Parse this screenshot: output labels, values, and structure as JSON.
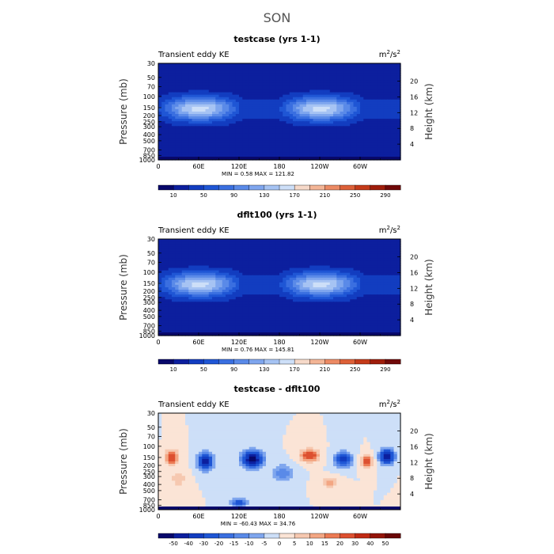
{
  "page_title": "SON",
  "colors": {
    "background": "#ffffff",
    "contour_field_base": "#1a3fb8",
    "map_frame": "#000000"
  },
  "chart_data": [
    {
      "type": "heatmap",
      "id": "panel-1",
      "title": "testcase (yrs 1-1)",
      "left_label": "Transient eddy KE",
      "units": "m2/s2",
      "units_base": "m",
      "units_exp1": "2",
      "units_mid": "/s",
      "units_exp2": "2",
      "ylabel": "Pressure (mb)",
      "y2label": "Height (km)",
      "y_ticks": [
        "30",
        "50",
        "70",
        "100",
        "150",
        "200",
        "250",
        "300",
        "400",
        "500",
        "700",
        "850",
        "1000"
      ],
      "y_tick_values": [
        30,
        50,
        70,
        100,
        150,
        200,
        250,
        300,
        400,
        500,
        700,
        850,
        1000
      ],
      "y2_ticks": [
        "20",
        "16",
        "12",
        "8",
        "4"
      ],
      "y2_tick_values": [
        20,
        16,
        12,
        8,
        4
      ],
      "ylim": [
        1000,
        30
      ],
      "x_ticks": [
        "0",
        "60E",
        "120E",
        "180",
        "120W",
        "60W"
      ],
      "x_tick_values": [
        0,
        60,
        120,
        180,
        240,
        300
      ],
      "xlim": [
        0,
        360
      ],
      "minmax_text": "MIN =     0.58   MAX = 121.82",
      "min": 0.58,
      "max": 121.82,
      "colorbar": {
        "levels": [
          10,
          30,
          50,
          70,
          90,
          110,
          130,
          150,
          170,
          190,
          210,
          230,
          250,
          270,
          290
        ],
        "labels": [
          "10",
          "50",
          "90",
          "130",
          "170",
          "210",
          "250",
          "290"
        ],
        "colors": [
          "#08086b",
          "#0c1f9e",
          "#123dc0",
          "#1f56d5",
          "#3a6fe0",
          "#5a8ae8",
          "#7fa6ee",
          "#a6c3f3",
          "#cddff8",
          "#f6d9c9",
          "#f3b596",
          "#ec8a64",
          "#dd6038",
          "#c43a19",
          "#9f1d0b",
          "#700909"
        ]
      },
      "field": "positive"
    },
    {
      "type": "heatmap",
      "id": "panel-2",
      "title": "dflt100 (yrs 1-1)",
      "left_label": "Transient eddy KE",
      "units": "m2/s2",
      "units_base": "m",
      "units_exp1": "2",
      "units_mid": "/s",
      "units_exp2": "2",
      "ylabel": "Pressure (mb)",
      "y2label": "Height (km)",
      "y_ticks": [
        "30",
        "50",
        "70",
        "100",
        "150",
        "200",
        "250",
        "300",
        "400",
        "500",
        "700",
        "850",
        "1000"
      ],
      "y_tick_values": [
        30,
        50,
        70,
        100,
        150,
        200,
        250,
        300,
        400,
        500,
        700,
        850,
        1000
      ],
      "y2_ticks": [
        "20",
        "16",
        "12",
        "8",
        "4"
      ],
      "y2_tick_values": [
        20,
        16,
        12,
        8,
        4
      ],
      "ylim": [
        1000,
        30
      ],
      "x_ticks": [
        "0",
        "60E",
        "120E",
        "180",
        "120W",
        "60W"
      ],
      "x_tick_values": [
        0,
        60,
        120,
        180,
        240,
        300
      ],
      "xlim": [
        0,
        360
      ],
      "minmax_text": "MIN =     0.76   MAX = 145.81",
      "min": 0.76,
      "max": 145.81,
      "colorbar": {
        "levels": [
          10,
          30,
          50,
          70,
          90,
          110,
          130,
          150,
          170,
          190,
          210,
          230,
          250,
          270,
          290
        ],
        "labels": [
          "10",
          "50",
          "90",
          "130",
          "170",
          "210",
          "250",
          "290"
        ],
        "colors": [
          "#08086b",
          "#0c1f9e",
          "#123dc0",
          "#1f56d5",
          "#3a6fe0",
          "#5a8ae8",
          "#7fa6ee",
          "#a6c3f3",
          "#cddff8",
          "#f6d9c9",
          "#f3b596",
          "#ec8a64",
          "#dd6038",
          "#c43a19",
          "#9f1d0b",
          "#700909"
        ]
      },
      "field": "positive"
    },
    {
      "type": "heatmap",
      "id": "panel-3",
      "title": "testcase - dflt100",
      "left_label": "Transient eddy KE",
      "units": "m2/s2",
      "units_base": "m",
      "units_exp1": "2",
      "units_mid": "/s",
      "units_exp2": "2",
      "ylabel": "Pressure (mb)",
      "y2label": "Height (km)",
      "y_ticks": [
        "30",
        "50",
        "70",
        "100",
        "150",
        "200",
        "250",
        "300",
        "400",
        "500",
        "700",
        "850",
        "1000"
      ],
      "y_tick_values": [
        30,
        50,
        70,
        100,
        150,
        200,
        250,
        300,
        400,
        500,
        700,
        850,
        1000
      ],
      "y2_ticks": [
        "20",
        "16",
        "12",
        "8",
        "4"
      ],
      "y2_tick_values": [
        20,
        16,
        12,
        8,
        4
      ],
      "ylim": [
        1000,
        30
      ],
      "x_ticks": [
        "0",
        "60E",
        "120E",
        "180",
        "120W",
        "60W"
      ],
      "x_tick_values": [
        0,
        60,
        120,
        180,
        240,
        300
      ],
      "xlim": [
        0,
        360
      ],
      "minmax_text": "MIN =   -60.43   MAX =  34.76",
      "min": -60.43,
      "max": 34.76,
      "colorbar": {
        "levels": [
          -50,
          -40,
          -30,
          -20,
          -15,
          -10,
          -5,
          0,
          5,
          10,
          15,
          20,
          30,
          40,
          50
        ],
        "labels": [
          "-50",
          "-40",
          "-30",
          "-20",
          "-15",
          "-10",
          "-5",
          "0",
          "5",
          "10",
          "15",
          "20",
          "30",
          "40",
          "50"
        ],
        "colors": [
          "#08086b",
          "#0c1f9e",
          "#123dc0",
          "#1f56d5",
          "#3a6fe0",
          "#5a8ae8",
          "#7fa6ee",
          "#cddff8",
          "#fbe4d6",
          "#f6c8b0",
          "#f3a683",
          "#ec7a54",
          "#dd5030",
          "#c02a14",
          "#931409",
          "#6a0606"
        ]
      },
      "field": "difference"
    }
  ]
}
